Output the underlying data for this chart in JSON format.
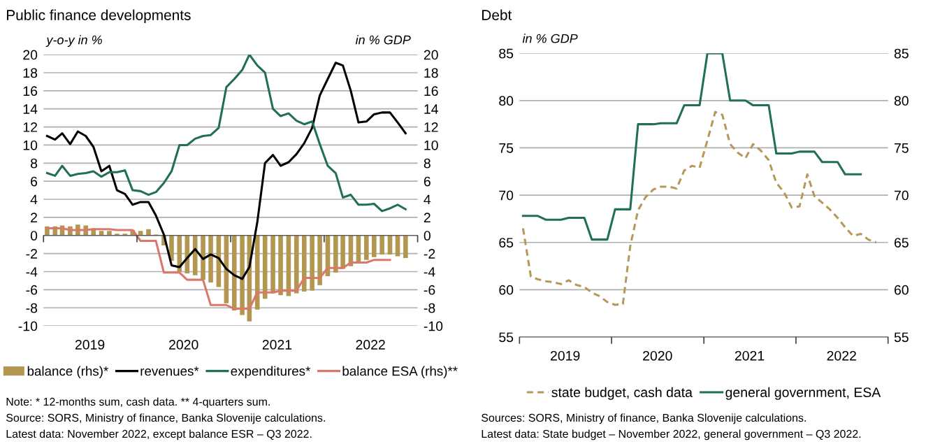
{
  "chart_data": [
    {
      "type": "line",
      "title": "Public finance developments",
      "ylabel": "y-o-y in %",
      "y2label": "in % GDP",
      "x": [
        "2019-01-15",
        "2019-02-15",
        "2019-03-15",
        "2019-04-15",
        "2019-05-15",
        "2019-06-15",
        "2019-07-15",
        "2019-08-15",
        "2019-09-15",
        "2019-10-15",
        "2019-11-15",
        "2019-12-15",
        "2020-01-15",
        "2020-02-15",
        "2020-03-15",
        "2020-04-15",
        "2020-05-15",
        "2020-06-15",
        "2020-07-15",
        "2020-08-15",
        "2020-09-15",
        "2020-10-15",
        "2020-11-15",
        "2020-12-15",
        "2021-01-15",
        "2021-02-15",
        "2021-03-15",
        "2021-04-15",
        "2021-05-15",
        "2021-06-15",
        "2021-07-15",
        "2021-08-15",
        "2021-09-15",
        "2021-10-15",
        "2021-11-15",
        "2021-12-15",
        "2022-01-15",
        "2022-02-15",
        "2022-03-15",
        "2022-04-15",
        "2022-05-15",
        "2022-06-15",
        "2022-07-15",
        "2022-08-15",
        "2022-09-15",
        "2022-10-15",
        "2022-11-15"
      ],
      "series": [
        {
          "name": "balance (rhs)*",
          "type": "bar",
          "axis": "y2",
          "color": "#b39650",
          "values": [
            1.0,
            1.0,
            1.1,
            1.0,
            1.2,
            1.1,
            0.8,
            0.5,
            0.5,
            0.2,
            0.2,
            0.6,
            0.5,
            0.7,
            0.1,
            -1.1,
            -2.8,
            -4.0,
            -4.2,
            -4.4,
            -4.9,
            -5.2,
            -5.7,
            -7.5,
            -8.3,
            -8.8,
            -9.5,
            -8.2,
            -7.0,
            -6.4,
            -6.6,
            -6.7,
            -6.4,
            -6.2,
            -6.1,
            -5.5,
            -4.5,
            -4.1,
            -3.7,
            -3.4,
            -3.0,
            -2.7,
            -2.4,
            -2.1,
            -2.1,
            -2.3,
            -2.5
          ]
        },
        {
          "name": "revenues*",
          "type": "line",
          "color": "#000000",
          "values": [
            11.0,
            10.6,
            11.3,
            10.1,
            11.5,
            11.0,
            9.8,
            7.1,
            7.7,
            5.0,
            4.6,
            3.4,
            3.7,
            3.7,
            2.2,
            0.1,
            -3.3,
            -3.5,
            -2.5,
            -1.5,
            -2.6,
            -2.1,
            -2.5,
            -3.7,
            -4.4,
            -4.8,
            -3.5,
            1.5,
            8.0,
            8.9,
            7.7,
            8.1,
            9.0,
            10.2,
            11.9,
            15.5,
            17.3,
            19.1,
            18.8,
            16.0,
            12.5,
            12.6,
            13.4,
            13.6,
            13.6,
            12.5,
            11.3
          ]
        },
        {
          "name": "expenditures*",
          "type": "line",
          "color": "#226f57",
          "values": [
            6.9,
            6.6,
            7.7,
            6.6,
            6.8,
            6.9,
            7.1,
            6.5,
            7.0,
            7.0,
            7.2,
            5.0,
            4.9,
            4.5,
            4.8,
            5.8,
            7.1,
            10.0,
            10.0,
            10.7,
            11.0,
            11.1,
            11.9,
            16.4,
            17.3,
            18.3,
            20.0,
            18.8,
            18.0,
            14.0,
            13.2,
            13.5,
            12.7,
            12.3,
            12.6,
            10.1,
            7.7,
            6.9,
            4.2,
            4.5,
            3.4,
            3.4,
            3.5,
            2.7,
            3.0,
            3.4,
            2.9
          ]
        },
        {
          "name": "balance ESA (rhs)**",
          "type": "line",
          "axis": "y2",
          "color": "#d9786b",
          "values": [
            0.8,
            0.8,
            0.8,
            0.6,
            0.6,
            0.6,
            0.7,
            0.7,
            0.7,
            0.6,
            0.6,
            0.6,
            -0.6,
            -0.6,
            -0.6,
            -4.1,
            -4.1,
            -4.1,
            -4.9,
            -4.9,
            -4.9,
            -7.7,
            -7.7,
            -7.7,
            -8.1,
            -8.1,
            -8.1,
            -6.3,
            -6.3,
            -6.3,
            -6.1,
            -6.1,
            -6.1,
            -4.7,
            -4.7,
            -4.7,
            -3.6,
            -3.6,
            -3.6,
            -3.0,
            -3.0,
            -3.0,
            -2.7,
            -2.7,
            -2.7,
            null,
            null
          ]
        }
      ],
      "xlim": [
        "2019-01-01",
        "2023-01-01"
      ],
      "xticks": [
        {
          "value": "2019-01-01",
          "label": null
        },
        {
          "value": "2019-07-01",
          "label": "2019"
        },
        {
          "value": "2020-01-01",
          "label": null
        },
        {
          "value": "2020-07-01",
          "label": "2020"
        },
        {
          "value": "2021-01-01",
          "label": null
        },
        {
          "value": "2021-07-01",
          "label": "2021"
        },
        {
          "value": "2022-01-01",
          "label": null
        },
        {
          "value": "2022-07-01",
          "label": "2022"
        },
        {
          "value": "2023-01-01",
          "label": null
        }
      ],
      "ylim": [
        -10,
        20
      ],
      "yticks": [
        -10,
        -8,
        -6,
        -4,
        -2,
        0,
        2,
        4,
        6,
        8,
        10,
        12,
        14,
        16,
        18,
        20
      ],
      "y2lim": [
        -10,
        20
      ],
      "y2ticks": [
        -10,
        -8,
        -6,
        -4,
        -2,
        0,
        2,
        4,
        6,
        8,
        10,
        12,
        14,
        16,
        18,
        20
      ],
      "grid": "y",
      "legend": "bottom",
      "marker": "none",
      "annotations": [
        "Note: * 12-months sum, cash data. ** 4-quarters sum.",
        "Source: SORS, Ministry of finance, Banka Slovenije calculations.",
        "Latest data: November 2022, except balance ESR – Q3 2022."
      ]
    },
    {
      "type": "line",
      "title": "Debt",
      "ylabel": "in % GDP",
      "x": [
        "2019-01-15",
        "2019-02-15",
        "2019-03-15",
        "2019-04-15",
        "2019-05-15",
        "2019-06-15",
        "2019-07-15",
        "2019-08-15",
        "2019-09-15",
        "2019-10-15",
        "2019-11-15",
        "2019-12-15",
        "2020-01-15",
        "2020-02-15",
        "2020-03-15",
        "2020-04-15",
        "2020-05-15",
        "2020-06-15",
        "2020-07-15",
        "2020-08-15",
        "2020-09-15",
        "2020-10-15",
        "2020-11-15",
        "2020-12-15",
        "2021-01-15",
        "2021-02-15",
        "2021-03-15",
        "2021-04-15",
        "2021-05-15",
        "2021-06-15",
        "2021-07-15",
        "2021-08-15",
        "2021-09-15",
        "2021-10-15",
        "2021-11-15",
        "2021-12-15",
        "2022-01-15",
        "2022-02-15",
        "2022-03-15",
        "2022-04-15",
        "2022-05-15",
        "2022-06-15",
        "2022-07-15",
        "2022-08-15",
        "2022-09-15",
        "2022-10-15",
        "2022-11-15"
      ],
      "series": [
        {
          "name": "state budget, cash data",
          "color": "#b8985a",
          "line_style": "dashed",
          "values": [
            66.5,
            61.4,
            61.1,
            60.9,
            60.8,
            60.6,
            61.0,
            60.5,
            60.3,
            59.7,
            59.3,
            58.7,
            58.4,
            58.5,
            64.6,
            68.4,
            69.8,
            70.6,
            70.9,
            70.9,
            70.7,
            72.6,
            73.1,
            72.9,
            75.8,
            78.8,
            78.5,
            75.4,
            74.5,
            73.9,
            75.4,
            74.7,
            73.7,
            71.3,
            70.3,
            68.7,
            68.8,
            72.2,
            69.9,
            69.2,
            68.5,
            67.6,
            66.6,
            65.7,
            65.9,
            65.3,
            65.0
          ]
        },
        {
          "name": "general government, ESA",
          "color": "#226f57",
          "line_style": "solid",
          "values": [
            67.8,
            67.8,
            67.8,
            67.4,
            67.4,
            67.4,
            67.6,
            67.6,
            67.6,
            65.3,
            65.3,
            65.3,
            68.5,
            68.5,
            68.5,
            77.5,
            77.5,
            77.5,
            77.6,
            77.6,
            77.6,
            79.5,
            79.5,
            79.5,
            85.0,
            85.0,
            85.0,
            80.0,
            80.0,
            80.0,
            79.5,
            79.5,
            79.5,
            74.4,
            74.4,
            74.4,
            74.6,
            74.6,
            74.6,
            73.5,
            73.5,
            73.5,
            72.2,
            72.2,
            72.2,
            null,
            null
          ]
        }
      ],
      "xlim": [
        "2019-01-01",
        "2023-01-01"
      ],
      "xticks": [
        {
          "value": "2019-01-01",
          "label": null
        },
        {
          "value": "2019-07-01",
          "label": "2019"
        },
        {
          "value": "2020-01-01",
          "label": null
        },
        {
          "value": "2020-07-01",
          "label": "2020"
        },
        {
          "value": "2021-01-01",
          "label": null
        },
        {
          "value": "2021-07-01",
          "label": "2021"
        },
        {
          "value": "2022-01-01",
          "label": null
        },
        {
          "value": "2022-07-01",
          "label": "2022"
        },
        {
          "value": "2023-01-01",
          "label": null
        }
      ],
      "ylim": [
        55,
        85
      ],
      "yticks": [
        55,
        60,
        65,
        70,
        75,
        80,
        85
      ],
      "y2lim": [
        55,
        85
      ],
      "y2ticks": [
        55,
        60,
        65,
        70,
        75,
        80,
        85
      ],
      "grid": "y",
      "legend": "bottom",
      "marker": "none",
      "annotations": [
        "Sources: SORS, Ministry of finance, Banka Slovenije calculations.",
        "Latest data: State budget – November 2022, general government – Q3 2022."
      ]
    }
  ]
}
